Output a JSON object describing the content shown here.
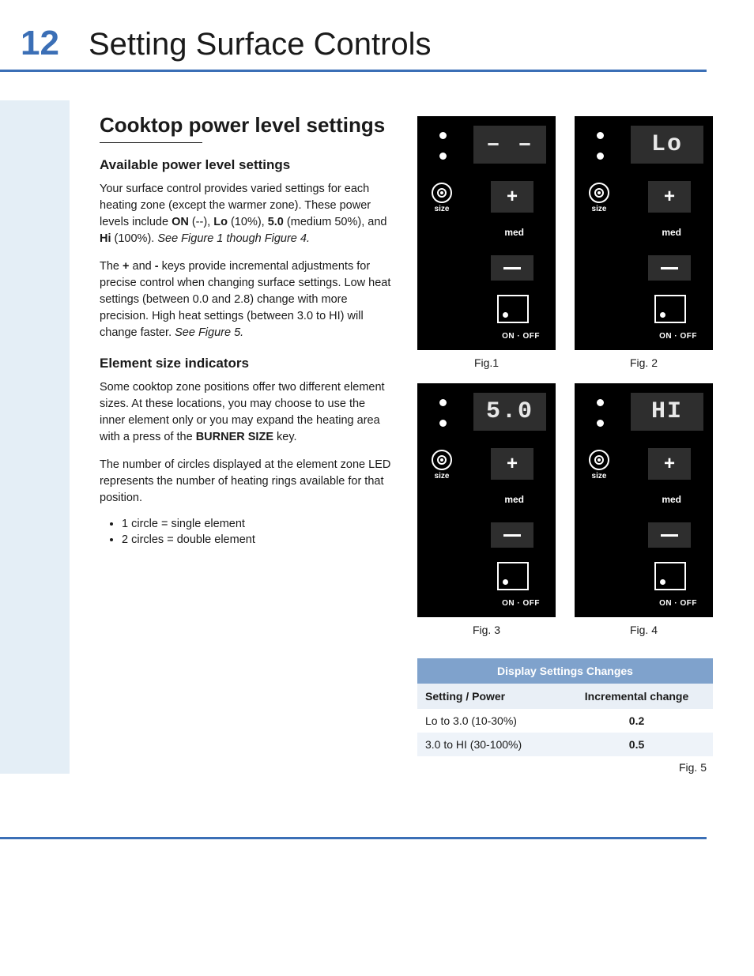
{
  "page_number": "12",
  "chapter_title": "Setting Surface Controls",
  "section_title": "Cooktop power level settings",
  "subsections": {
    "available": {
      "heading": "Available power level settings",
      "p1_a": "Your surface control provides varied settings for each heating zone (except the warmer zone). These power levels include ",
      "p1_bold1": "ON",
      "p1_b": " (--), ",
      "p1_bold2": "Lo",
      "p1_c": " (10%), ",
      "p1_bold3": "5.0",
      "p1_d": " (medium 50%), and ",
      "p1_bold4": "Hi",
      "p1_e": " (100%). ",
      "p1_ital": "See Figure 1 though Figure 4.",
      "p2_a": "The ",
      "p2_bold1": "+",
      "p2_b": " and ",
      "p2_bold2": "-",
      "p2_c": " keys provide incremental adjustments for precise control when changing surface settings. Low heat settings (between 0.0 and 2.8) change with more precision. High heat settings (between 3.0 to HI) will change faster. ",
      "p2_ital": "See Figure 5."
    },
    "element": {
      "heading": "Element size indicators",
      "p1_a": "Some cooktop zone positions offer two different element sizes. At these locations, you may choose to use the inner element only or you may expand the heating area with a press of the ",
      "p1_bold": "BURNER SIZE",
      "p1_b": " key.",
      "p2": "The number of circles displayed at the element zone LED represents the number of heating rings available for that position.",
      "bullets": [
        "1 circle = single element",
        "2 circles = double element"
      ]
    }
  },
  "panels": {
    "labels": {
      "size": "size",
      "med": "med",
      "onoff": "ON · OFF",
      "plus": "+",
      "minus": "—"
    },
    "figs": [
      {
        "display": "– –",
        "caption": "Fig.1"
      },
      {
        "display": "Lo",
        "caption": "Fig. 2"
      },
      {
        "display": "5.0",
        "caption": "Fig. 3"
      },
      {
        "display": "HI",
        "caption": "Fig. 4"
      }
    ]
  },
  "table": {
    "title": "Display Settings Changes",
    "col1": "Setting / Power",
    "col2": "Incremental change",
    "rows": [
      {
        "c1": "Lo to 3.0 (10-30%)",
        "c2": "0.2"
      },
      {
        "c1": "3.0 to HI (30-100%)",
        "c2": "0.5"
      }
    ],
    "caption": "Fig. 5"
  },
  "colors": {
    "accent": "#3b6fb6",
    "gutter": "#e4eef6",
    "panel_bg": "#000000",
    "panel_sub": "#2e2e2e",
    "table_header": "#7fa2cc",
    "table_sub": "#e9eff6",
    "table_alt": "#eef3f9"
  }
}
